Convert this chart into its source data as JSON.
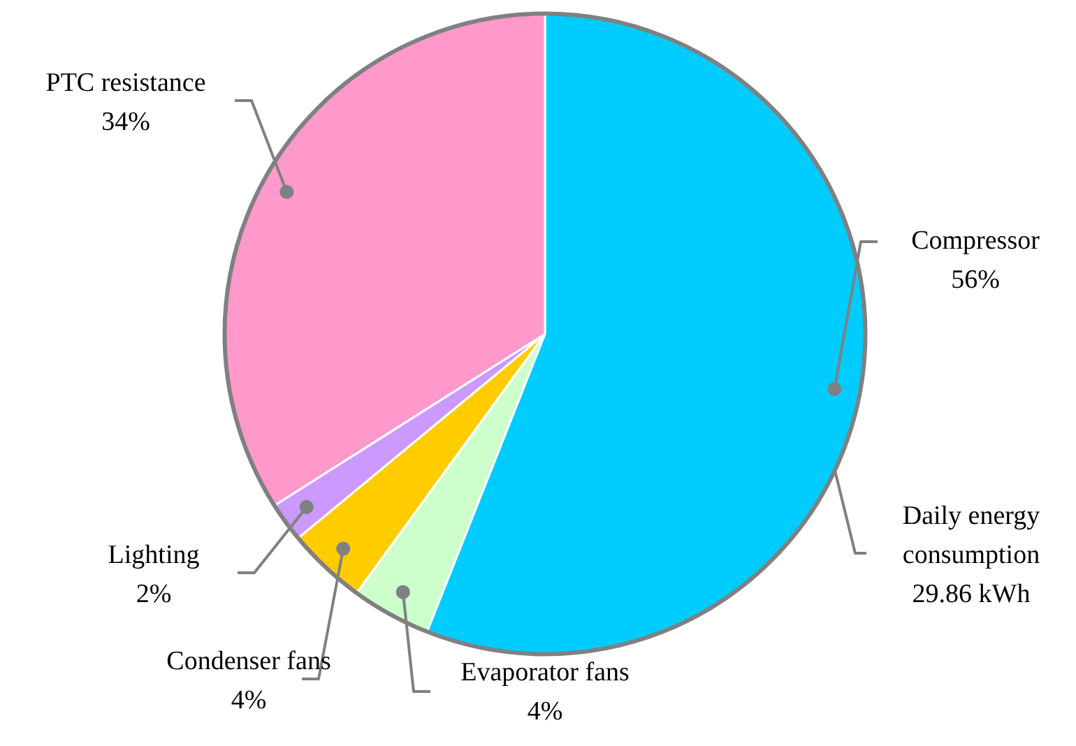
{
  "chart_data": {
    "type": "pie",
    "categories": [
      "Compressor",
      "Evaporator fans",
      "Condenser fans",
      "Lighting",
      "PTC resistance"
    ],
    "values": [
      56,
      4,
      4,
      2,
      34
    ],
    "value_labels": [
      "56%",
      "4%",
      "4%",
      "2%",
      "34%"
    ],
    "colors": [
      "#00ccff",
      "#ccffcc",
      "#ffcc00",
      "#cc99ff",
      "#ff99cc"
    ],
    "annotations": [
      "Daily energy consumption 29.86 kWh"
    ],
    "legend": false
  }
}
